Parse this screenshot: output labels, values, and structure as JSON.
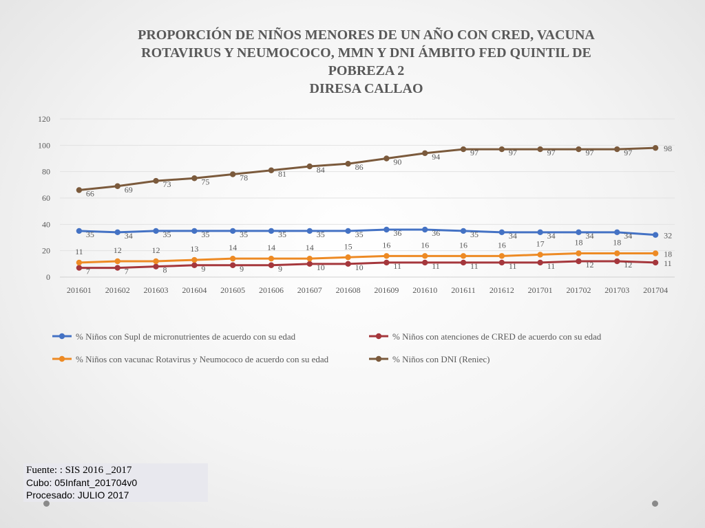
{
  "title_lines": [
    "PROPORCIÓN DE NIÑOS MENORES DE UN AÑO CON CRED, VACUNA",
    "ROTAVIRUS Y NEUMOCOCO, MMN Y DNI  ÁMBITO FED QUINTIL  DE",
    "POBREZA 2",
    "DIRESA CALLAO"
  ],
  "source": {
    "line1": "Fuente: : SIS 2016 _2017",
    "line2": "Cubo: 05Infant_201704v0",
    "line3": "Procesado: JULIO 2017"
  },
  "chart_data": {
    "type": "line",
    "categories": [
      "201601",
      "201602",
      "201603",
      "201604",
      "201605",
      "201606",
      "201607",
      "201608",
      "201609",
      "201610",
      "201611",
      "201612",
      "201701",
      "201702",
      "201703",
      "201704"
    ],
    "ylim": [
      0,
      120
    ],
    "yticks": [
      0,
      20,
      40,
      60,
      80,
      100,
      120
    ],
    "grid": true,
    "legend_position": "bottom",
    "series": [
      {
        "name": "% Niños con Supl de micronutrientes de acuerdo con su edad",
        "color": "#4472c4",
        "values": [
          35,
          34,
          35,
          35,
          35,
          35,
          35,
          35,
          36,
          36,
          35,
          34,
          34,
          34,
          34,
          32
        ]
      },
      {
        "name": "% Niños  con atenciones de CRED de acuerdo con su edad",
        "color": "#a5373c",
        "values": [
          7,
          7,
          8,
          9,
          9,
          9,
          10,
          10,
          11,
          11,
          11,
          11,
          11,
          12,
          12,
          11
        ]
      },
      {
        "name": "% Niños con vacunac Rotavirus y Neumococo de acuerdo con su edad",
        "color": "#ed8a24",
        "values": [
          11,
          12,
          12,
          13,
          14,
          14,
          14,
          15,
          16,
          16,
          16,
          16,
          17,
          18,
          18,
          18
        ]
      },
      {
        "name": "% Niños con DNI (Reniec)",
        "color": "#7b5a3c",
        "values": [
          66,
          69,
          73,
          75,
          78,
          81,
          84,
          86,
          90,
          94,
          97,
          97,
          97,
          97,
          97,
          98
        ]
      }
    ]
  }
}
